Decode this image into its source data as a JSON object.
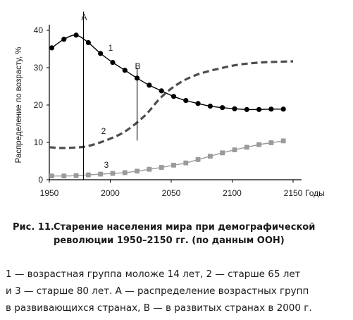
{
  "chart_data": {
    "type": "line",
    "xlabel": "Годы",
    "ylabel": "Распределение по возрасту, %",
    "xlim": [
      1950,
      2150
    ],
    "ylim": [
      0,
      40
    ],
    "x_ticks": [
      "1950",
      "2000",
      "2050",
      "2100",
      "2150"
    ],
    "y_ticks": [
      "0",
      "10",
      "20",
      "30",
      "40"
    ],
    "grid": false,
    "series": [
      {
        "name": "1",
        "style": "solid-with-dots",
        "color": "#000000",
        "x": [
          1952,
          1962,
          1972,
          1982,
          1992,
          2002,
          2012,
          2022,
          2032,
          2042,
          2052,
          2062,
          2072,
          2082,
          2092,
          2102,
          2112,
          2122,
          2132,
          2142
        ],
        "values": [
          35.3,
          37.6,
          38.7,
          36.7,
          33.8,
          31.4,
          29.3,
          27.2,
          25.3,
          23.8,
          22.3,
          21.2,
          20.4,
          19.7,
          19.3,
          19.0,
          18.8,
          18.8,
          18.9,
          18.9
        ]
      },
      {
        "name": "2",
        "style": "dashed",
        "color": "#4d4d4d",
        "x": [
          1950,
          1960,
          1970,
          1980,
          1990,
          2000,
          2010,
          2020,
          2030,
          2040,
          2050,
          2060,
          2070,
          2080,
          2090,
          2100,
          2110,
          2120,
          2130,
          2140,
          2150
        ],
        "values": [
          8.7,
          8.5,
          8.6,
          8.9,
          9.8,
          11.0,
          12.5,
          14.8,
          17.7,
          21.5,
          24.4,
          26.5,
          28.0,
          29.0,
          29.8,
          30.5,
          31.0,
          31.3,
          31.5,
          31.6,
          31.7
        ]
      },
      {
        "name": "3",
        "style": "solid-with-squares",
        "color": "#9a9a9a",
        "x": [
          1952,
          1962,
          1972,
          1982,
          1992,
          2002,
          2012,
          2022,
          2032,
          2042,
          2052,
          2062,
          2072,
          2082,
          2092,
          2102,
          2112,
          2122,
          2132,
          2142
        ],
        "values": [
          1.0,
          1.0,
          1.1,
          1.3,
          1.5,
          1.7,
          1.9,
          2.3,
          2.8,
          3.3,
          3.9,
          4.5,
          5.4,
          6.3,
          7.2,
          8.0,
          8.7,
          9.4,
          9.9,
          10.4
        ]
      }
    ],
    "vertical_markers": [
      {
        "label": "A",
        "x": 1978,
        "y_from": 0,
        "y_to": 45
      },
      {
        "label": "B",
        "x": 2022,
        "y_from": 10.5,
        "y_to": 30
      }
    ]
  },
  "caption": {
    "number": "Рис. 11.",
    "title": "Старение населения мира при демографической революции 1950–2150 гг. (по данным ООН)"
  },
  "legend": [
    "1 — возрастная группа моложе 14 лет, 2 — старше 65 лет",
    "и 3 — старше 80 лет. А — распределение возрастных групп",
    "в развивающихся странах, В — в развитых странах в 2000 г."
  ]
}
